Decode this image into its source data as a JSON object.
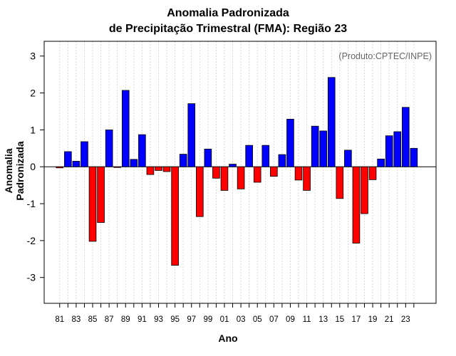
{
  "chart_data": {
    "type": "bar",
    "title": "Anomalia Padronizada",
    "subtitle": "de Precipitação Trimestral (FMA): Região 23",
    "xlabel": "Ano",
    "ylabel": "Anomalia Padronizada",
    "credit": "(Produto:CPTEC/INPE)",
    "ylim": [
      -3.7,
      3.4
    ],
    "yticks": [
      -3,
      -2,
      -1,
      0,
      1,
      2,
      3
    ],
    "positive_color": "#0000ff",
    "negative_color": "#ff0000",
    "categories": [
      "81",
      "82",
      "83",
      "84",
      "85",
      "86",
      "87",
      "88",
      "89",
      "90",
      "91",
      "92",
      "93",
      "94",
      "95",
      "96",
      "97",
      "98",
      "99",
      "00",
      "01",
      "02",
      "03",
      "04",
      "05",
      "06",
      "07",
      "08",
      "09",
      "10",
      "11",
      "12",
      "13",
      "14",
      "15",
      "16",
      "17",
      "18",
      "19",
      "20",
      "21",
      "22",
      "23",
      "24"
    ],
    "xtick_labels": [
      "81",
      "83",
      "85",
      "87",
      "89",
      "91",
      "93",
      "95",
      "97",
      "99",
      "01",
      "03",
      "05",
      "07",
      "09",
      "11",
      "13",
      "15",
      "17",
      "19",
      "21",
      "23"
    ],
    "values": [
      -0.03,
      0.41,
      0.15,
      0.68,
      -2.02,
      -1.51,
      1.0,
      -0.01,
      2.07,
      0.2,
      0.87,
      -0.21,
      -0.1,
      -0.13,
      -2.67,
      0.34,
      1.71,
      -1.35,
      0.48,
      -0.31,
      -0.64,
      0.07,
      -0.6,
      0.58,
      -0.42,
      0.58,
      -0.26,
      0.33,
      1.29,
      -0.36,
      -0.64,
      1.1,
      0.97,
      2.42,
      -0.86,
      0.45,
      -2.07,
      -1.27,
      -0.35,
      0.21,
      0.84,
      0.95,
      1.61,
      0.5
    ]
  }
}
